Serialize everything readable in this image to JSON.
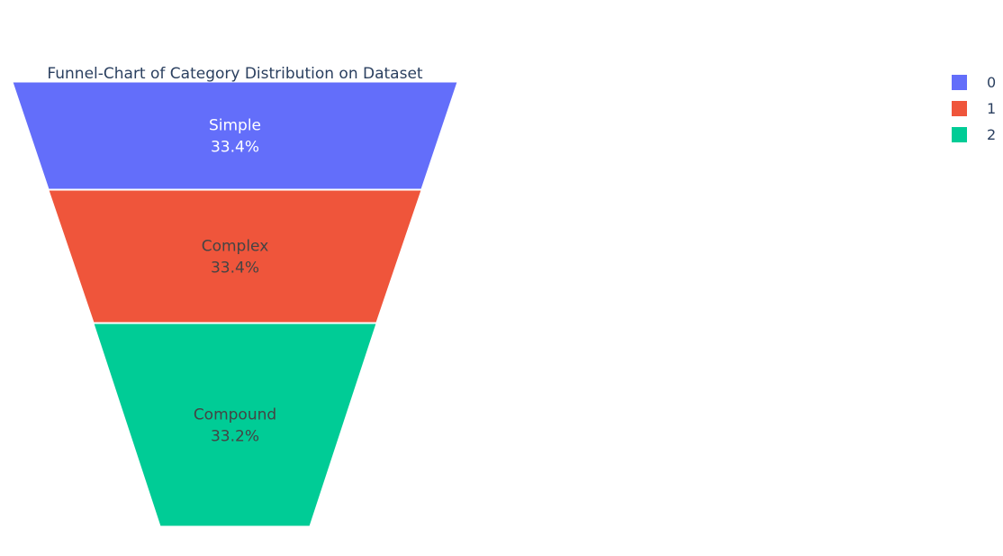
{
  "chart_data": {
    "type": "funnel",
    "title": "Funnel-Chart of Category Distribution on Dataset",
    "stages": [
      {
        "legend": "0",
        "label": "Simple",
        "percent_text": "33.4%",
        "percent": 33.4,
        "color": "#636efa",
        "text_color": "#ffffff"
      },
      {
        "legend": "1",
        "label": "Complex",
        "percent_text": "33.4%",
        "percent": 33.4,
        "color": "#ef553b",
        "text_color": "#444444"
      },
      {
        "legend": "2",
        "label": "Compound",
        "percent_text": "33.2%",
        "percent": 33.2,
        "color": "#00cc96",
        "text_color": "#444444"
      }
    ],
    "legend": {
      "position": "top-right",
      "items": [
        "0",
        "1",
        "2"
      ]
    }
  }
}
